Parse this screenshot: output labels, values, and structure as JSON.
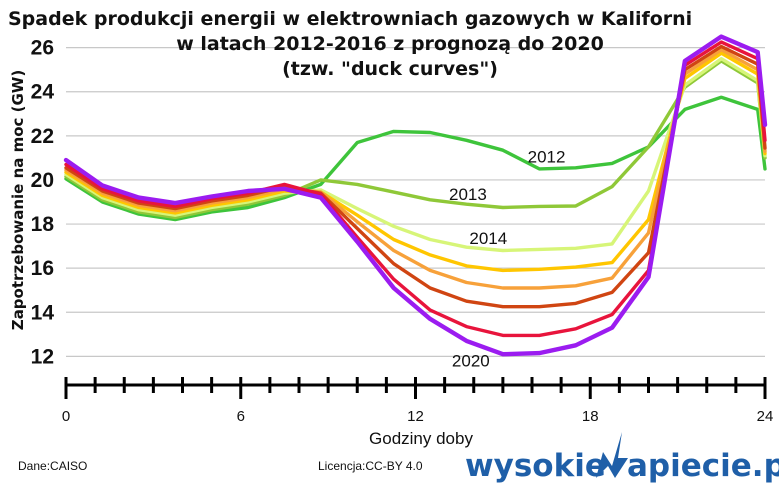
{
  "chart_data": {
    "type": "line",
    "title": "Spadek produkcji energii w elektrowniach gazowych w Kaliforni",
    "subtitle_lines": [
      "w latach 2012-2016 z prognozą do 2020",
      "(tzw. \"duck curves\")"
    ],
    "xlabel": "Godziny doby",
    "ylabel": "Zapotrzebowanie na moc (GW)",
    "xlim": [
      0,
      24
    ],
    "ylim": [
      11.2,
      26.8
    ],
    "x_ticks": [
      0,
      6,
      12,
      18,
      24
    ],
    "y_ticks": [
      12,
      14,
      16,
      18,
      20,
      22,
      24,
      26
    ],
    "grid": "horizontal",
    "x": [
      0,
      1.25,
      2.5,
      3.75,
      5,
      6.25,
      7.5,
      8.75,
      10,
      11.25,
      12.5,
      13.75,
      15,
      16.25,
      17.5,
      18.75,
      20,
      21.25,
      22.5,
      23.75,
      24
    ],
    "series": [
      {
        "name": "2012",
        "color": "#3ec43b",
        "width": 3.4,
        "values": [
          20.05,
          19.0,
          18.45,
          18.2,
          18.55,
          18.75,
          19.2,
          19.8,
          21.7,
          22.2,
          22.15,
          21.8,
          21.35,
          20.5,
          20.55,
          20.75,
          21.5,
          23.2,
          23.75,
          23.2,
          20.5
        ]
      },
      {
        "name": "2013",
        "color": "#8fc838",
        "width": 3.4,
        "values": [
          20.15,
          19.1,
          18.55,
          18.3,
          18.65,
          18.9,
          19.3,
          20.0,
          19.8,
          19.45,
          19.1,
          18.9,
          18.75,
          18.8,
          18.82,
          19.7,
          21.5,
          24.2,
          25.4,
          24.4,
          21.0
        ]
      },
      {
        "name": "2014",
        "color": "#d7f578",
        "width": 3.4,
        "values": [
          20.25,
          19.2,
          18.65,
          18.4,
          18.75,
          19.0,
          19.4,
          19.55,
          18.7,
          17.9,
          17.3,
          16.95,
          16.8,
          16.85,
          16.9,
          17.1,
          19.5,
          24.3,
          25.5,
          24.5,
          21.1
        ]
      },
      {
        "name": "",
        "color": "#ffc600",
        "width": 3.4,
        "values": [
          20.35,
          19.3,
          18.75,
          18.5,
          18.85,
          19.1,
          19.5,
          19.45,
          18.4,
          17.3,
          16.6,
          16.1,
          15.9,
          15.95,
          16.05,
          16.25,
          18.2,
          24.6,
          25.75,
          24.8,
          21.2
        ]
      },
      {
        "name": "",
        "color": "#f7a13a",
        "width": 3.4,
        "values": [
          20.45,
          19.4,
          18.85,
          18.6,
          18.95,
          19.2,
          19.6,
          19.45,
          18.1,
          16.8,
          15.9,
          15.35,
          15.1,
          15.1,
          15.2,
          15.55,
          17.6,
          24.8,
          25.9,
          25.0,
          21.3
        ]
      },
      {
        "name": "",
        "color": "#d04512",
        "width": 3.4,
        "values": [
          20.55,
          19.5,
          18.95,
          18.7,
          19.05,
          19.3,
          19.7,
          19.4,
          17.8,
          16.2,
          15.1,
          14.5,
          14.25,
          14.25,
          14.4,
          14.9,
          16.7,
          25.0,
          26.05,
          25.25,
          21.45
        ]
      },
      {
        "name": "",
        "color": "#e8143c",
        "width": 3.4,
        "values": [
          20.7,
          19.6,
          19.05,
          18.8,
          19.15,
          19.4,
          19.8,
          19.35,
          17.4,
          15.5,
          14.1,
          13.35,
          12.95,
          12.95,
          13.25,
          13.9,
          15.9,
          25.2,
          26.25,
          25.5,
          21.8
        ]
      },
      {
        "name": "2020",
        "color": "#9b1cf0",
        "width": 4.4,
        "values": [
          20.9,
          19.75,
          19.2,
          18.95,
          19.25,
          19.5,
          19.6,
          19.2,
          17.2,
          15.1,
          13.7,
          12.7,
          12.1,
          12.15,
          12.5,
          13.3,
          15.6,
          25.4,
          26.5,
          25.8,
          22.5
        ]
      }
    ],
    "series_labels": [
      {
        "text": "2012",
        "x": 16.5,
        "y": 20.8
      },
      {
        "text": "2013",
        "x": 13.8,
        "y": 19.1
      },
      {
        "text": "2014",
        "x": 14.5,
        "y": 17.1
      },
      {
        "text": "2020",
        "x": 13.9,
        "y": 11.55
      }
    ]
  },
  "footer": {
    "source": "Dane:CAISO",
    "license": "Licencja:CC-BY 4.0",
    "logo_left": "wysokie",
    "logo_right": "apiecie.pl"
  }
}
